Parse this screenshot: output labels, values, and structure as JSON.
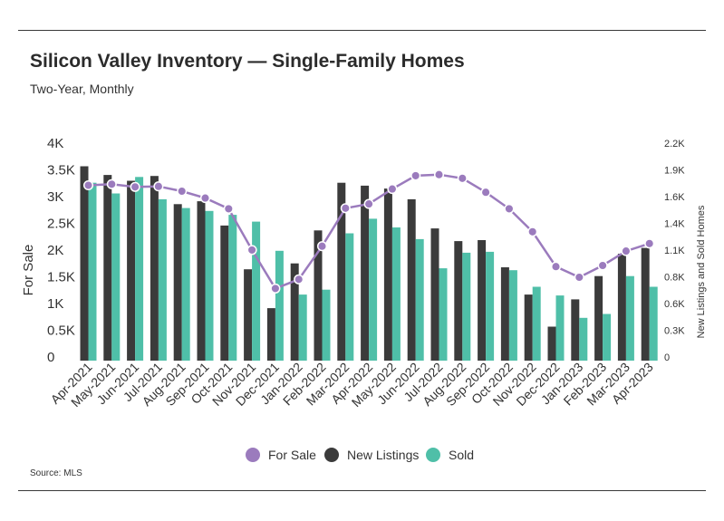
{
  "title": "Silicon Valley Inventory — Single-Family Homes",
  "subtitle": "Two-Year, Monthly",
  "source": "Source: MLS",
  "colors": {
    "for_sale": "#9b7bbd",
    "new_listings": "#3b3b3b",
    "sold": "#4fbfa8",
    "rule": "#3a3a3a"
  },
  "chart_data": {
    "type": "bar",
    "categories": [
      "Apr-2021",
      "May-2021",
      "Jun-2021",
      "Jul-2021",
      "Aug-2021",
      "Sep-2021",
      "Oct-2021",
      "Nov-2021",
      "Dec-2021",
      "Jan-2022",
      "Feb-2022",
      "Mar-2022",
      "Apr-2022",
      "May-2022",
      "Jun-2022",
      "Jul-2022",
      "Aug-2022",
      "Sep-2022",
      "Oct-2022",
      "Nov-2022",
      "Dec-2022",
      "Jan-2023",
      "Feb-2023",
      "Mar-2023",
      "Apr-2023"
    ],
    "series": [
      {
        "name": "For Sale",
        "type": "line",
        "axis": "left",
        "values": [
          3280,
          3300,
          3250,
          3260,
          3170,
          3040,
          2840,
          2070,
          1350,
          1520,
          2140,
          2850,
          2930,
          3210,
          3460,
          3480,
          3410,
          3150,
          2840,
          2410,
          1760,
          1560,
          1780,
          2050,
          2190
        ]
      },
      {
        "name": "New Listings",
        "type": "bar",
        "axis": "right",
        "values": [
          2000,
          1910,
          1850,
          1900,
          1610,
          1640,
          1390,
          940,
          540,
          1000,
          1340,
          1830,
          1800,
          1770,
          1660,
          1360,
          1230,
          1240,
          960,
          680,
          350,
          630,
          870,
          1100,
          1160
        ]
      },
      {
        "name": "Sold",
        "type": "bar",
        "axis": "right",
        "values": [
          1830,
          1720,
          1890,
          1660,
          1570,
          1540,
          1500,
          1430,
          1130,
          680,
          730,
          1310,
          1460,
          1370,
          1250,
          950,
          1110,
          1120,
          930,
          760,
          670,
          440,
          480,
          870,
          760
        ]
      }
    ],
    "left_axis": {
      "label": "For Sale",
      "ticks": [
        "0",
        "0.5K",
        "1K",
        "1.5K",
        "2K",
        "2.5K",
        "3K",
        "3.5K",
        "4K"
      ],
      "ylim": [
        0,
        4000
      ]
    },
    "right_axis": {
      "label": "New Listings and Sold Homes",
      "ticks": [
        "0",
        "0.3K",
        "0.6K",
        "0.8K",
        "1.1K",
        "1.4K",
        "1.6K",
        "1.9K",
        "2.2K"
      ],
      "ylim": [
        0,
        2200
      ]
    },
    "grid": false,
    "legend": "bottom-center"
  }
}
